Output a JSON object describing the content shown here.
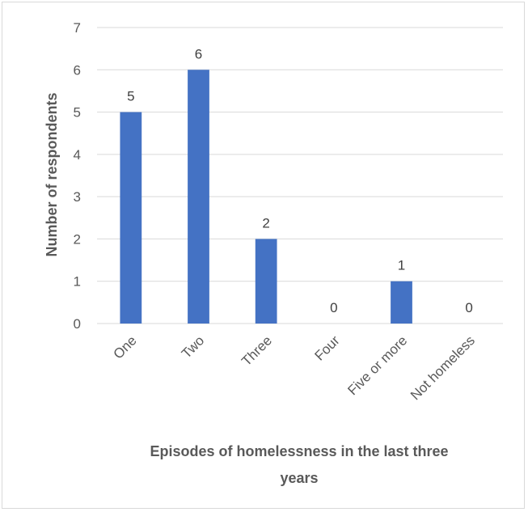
{
  "chart_data": {
    "type": "bar",
    "categories": [
      "One",
      "Two",
      "Three",
      "Four",
      "Five or more",
      "Not homeless"
    ],
    "values": [
      5,
      6,
      2,
      0,
      1,
      0
    ],
    "data_labels": [
      "5",
      "6",
      "2",
      "0",
      "1",
      "0"
    ],
    "xlabel_lines": [
      "Episodes of homelessness in the last three",
      "years"
    ],
    "ylabel": "Number of respondents",
    "ylim": [
      0,
      7
    ],
    "yticks": [
      "0",
      "1",
      "2",
      "3",
      "4",
      "5",
      "6",
      "7"
    ],
    "grid": true,
    "legend": "none",
    "bar_color": "#4472c4",
    "grid_color": "#d9d9d9"
  }
}
